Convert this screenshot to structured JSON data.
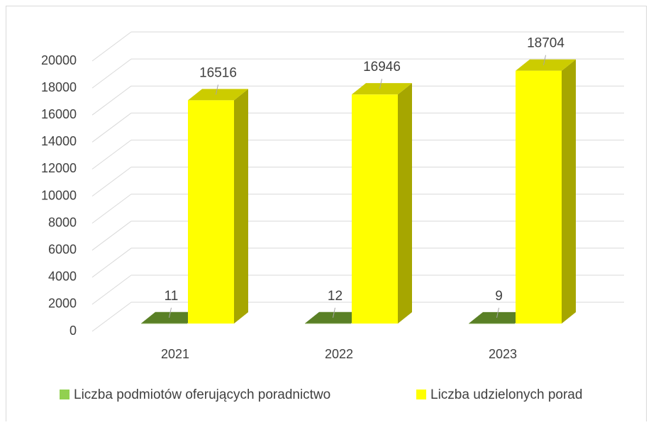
{
  "chart_data": {
    "type": "bar3d",
    "categories": [
      "2021",
      "2022",
      "2023"
    ],
    "series": [
      {
        "name": "Liczba podmiotów oferujących poradnictwo",
        "color": "#70a030",
        "values": [
          11,
          12,
          9
        ]
      },
      {
        "name": "Liczba udzielonych porad",
        "color": "#ffff00",
        "values": [
          16516,
          16946,
          18704
        ]
      }
    ],
    "ylim": [
      0,
      20000
    ],
    "yticks": [
      0,
      2000,
      4000,
      6000,
      8000,
      10000,
      12000,
      14000,
      16000,
      18000,
      20000
    ],
    "grid": true,
    "legend": "bottom"
  }
}
